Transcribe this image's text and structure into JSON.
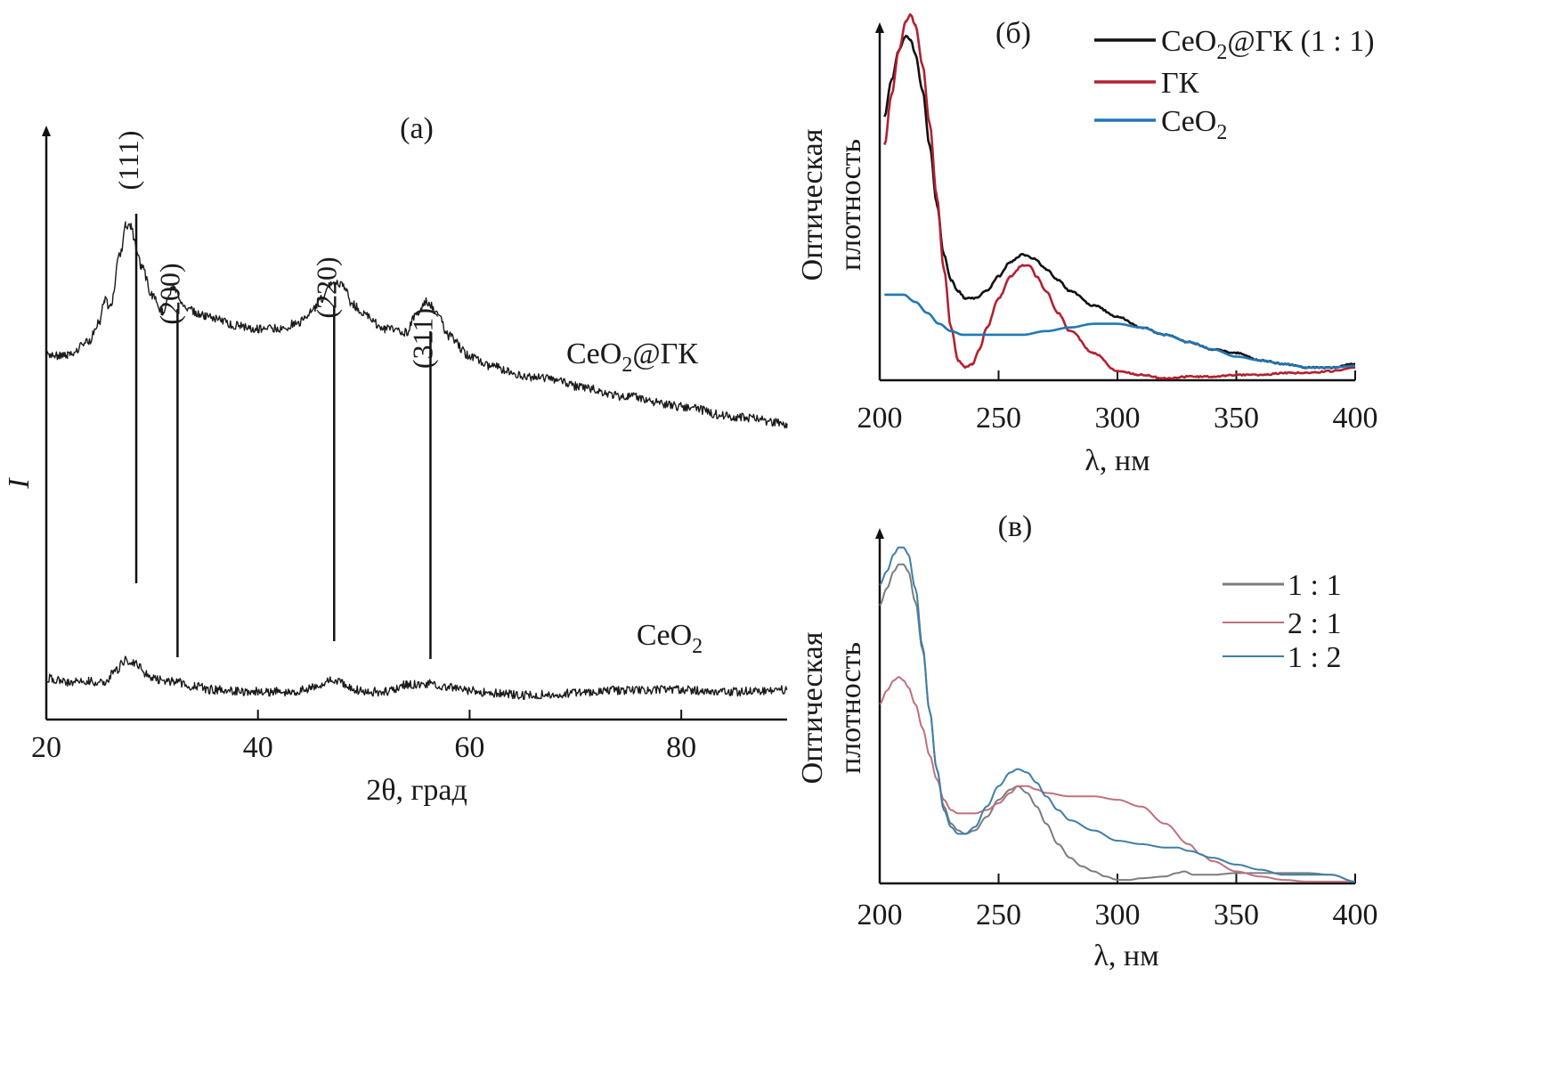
{
  "chart_data": [
    {
      "id": "a",
      "type": "line",
      "panel_label": "(а)",
      "title": "",
      "xlabel": "2θ, град",
      "ylabel": "I",
      "xlim": [
        20,
        90
      ],
      "ylim": [
        0,
        100
      ],
      "x_ticks": [
        20,
        40,
        60,
        80
      ],
      "grid": false,
      "legend": "none",
      "series_labels": [
        {
          "name": "CeO₂@ГК",
          "base": "CeO",
          "sub": "2",
          "suffix": "@ГК"
        },
        {
          "name": "CeO₂",
          "base": "CeO",
          "sub": "2",
          "suffix": ""
        }
      ],
      "series": [
        {
          "name": "CeO₂@ГК",
          "color": "#1a1a1a",
          "x": [
            20,
            22,
            24,
            25,
            25.5,
            26,
            27,
            27.5,
            28,
            28.5,
            29,
            30,
            31,
            32,
            33,
            35,
            38,
            40,
            42,
            44,
            45,
            46,
            47,
            48,
            49,
            50,
            52,
            54,
            55,
            56,
            57,
            58,
            60,
            62,
            65,
            68,
            70,
            75,
            80,
            85,
            90
          ],
          "y": [
            58,
            58,
            62,
            68,
            75,
            72,
            88,
            97,
            96,
            90,
            84,
            76,
            71,
            78,
            72,
            70,
            67,
            66,
            66,
            68,
            71,
            75,
            80,
            79,
            73,
            70,
            66,
            65,
            70,
            74,
            70,
            64,
            58,
            55,
            52,
            51,
            49,
            46,
            43,
            40,
            38
          ]
        },
        {
          "name": "CeO₂",
          "color": "#1a1a1a",
          "x": [
            20,
            22,
            24,
            25.5,
            26.5,
            27.5,
            28.5,
            29.5,
            30.5,
            32,
            34,
            36,
            40,
            43,
            45,
            46.5,
            47.5,
            48.5,
            50,
            52,
            54,
            56,
            58,
            60,
            62,
            65,
            70,
            75,
            80,
            85,
            90
          ],
          "y": [
            14,
            12,
            12,
            12,
            18,
            25,
            23,
            16,
            13,
            12,
            9,
            7,
            6,
            6,
            8,
            12,
            13,
            9,
            6,
            6,
            10,
            11,
            9,
            7,
            5,
            4,
            5,
            7,
            7,
            6,
            7
          ]
        }
      ],
      "annotations": [
        {
          "text": "(111)",
          "x": 28.5
        },
        {
          "text": "(200)",
          "x": 32.4
        },
        {
          "text": "(220)",
          "x": 47.2
        },
        {
          "text": "(311)",
          "x": 56.3
        }
      ],
      "reference_lines_x": [
        28.5,
        32.4,
        47.2,
        56.3
      ]
    },
    {
      "id": "b",
      "type": "line",
      "panel_label": "(б)",
      "title": "",
      "xlabel": "λ, нм",
      "ylabel_line1": "Оптическая",
      "ylabel_line2": "плотность",
      "xlim": [
        200,
        400
      ],
      "ylim": [
        0,
        100
      ],
      "x_ticks": [
        200,
        250,
        300,
        350,
        400
      ],
      "grid": false,
      "legend": "top-right",
      "legend_entries": [
        {
          "base": "CeO",
          "sub": "2",
          "suffix": "@ГК (1 : 1)",
          "color": "#111111"
        },
        {
          "base": "ГК",
          "sub": "",
          "suffix": "",
          "color": "#b3212f"
        },
        {
          "base": "CeO",
          "sub": "2",
          "suffix": "",
          "color": "#1f78b4"
        }
      ],
      "series": [
        {
          "name": "CeO₂@ГК (1 : 1)",
          "color": "#111111",
          "x": [
            202,
            205,
            208,
            211,
            213,
            215,
            218,
            221,
            224,
            227,
            230,
            233,
            236,
            240,
            245,
            250,
            255,
            260,
            265,
            270,
            275,
            280,
            290,
            300,
            310,
            320,
            330,
            340,
            350,
            360,
            370,
            380,
            390,
            400
          ],
          "y": [
            72,
            82,
            90,
            94,
            93,
            89,
            79,
            64,
            48,
            34,
            27,
            24,
            22,
            22,
            24,
            28,
            32,
            34,
            33,
            30,
            27,
            24,
            20,
            17,
            14,
            12,
            10,
            8,
            7,
            5,
            4,
            3,
            3,
            4
          ]
        },
        {
          "name": "ГК",
          "color": "#b3212f",
          "x": [
            202,
            205,
            208,
            211,
            213,
            215,
            218,
            221,
            224,
            227,
            230,
            233,
            236,
            239,
            242,
            245,
            250,
            255,
            260,
            263,
            266,
            270,
            275,
            280,
            290,
            300,
            310,
            320,
            330,
            340,
            350,
            360,
            370,
            380,
            390,
            400
          ],
          "y": [
            64,
            78,
            90,
            98,
            100,
            97,
            86,
            70,
            50,
            30,
            14,
            5,
            3,
            4,
            8,
            14,
            22,
            28,
            31,
            31,
            28,
            24,
            18,
            13,
            7,
            2,
            1,
            0,
            0.5,
            0.5,
            1,
            1,
            1.5,
            1.5,
            2,
            3
          ]
        },
        {
          "name": "CeO₂",
          "color": "#1f78b4",
          "x": [
            202,
            205,
            210,
            215,
            220,
            225,
            230,
            235,
            240,
            250,
            260,
            270,
            280,
            290,
            300,
            310,
            320,
            330,
            340,
            350,
            360,
            370,
            380,
            390,
            400
          ],
          "y": [
            23,
            23,
            23,
            21,
            18,
            15,
            13,
            12,
            12,
            12,
            12,
            13,
            14,
            15,
            15,
            14,
            12,
            10,
            8,
            6,
            5,
            4,
            3,
            3,
            3.5
          ]
        }
      ]
    },
    {
      "id": "v",
      "type": "line",
      "panel_label": "(в)",
      "title": "",
      "xlabel": "λ, нм",
      "ylabel_line1": "Оптическая",
      "ylabel_line2": "плотность",
      "xlim": [
        200,
        400
      ],
      "ylim": [
        0,
        100
      ],
      "x_ticks": [
        200,
        250,
        300,
        350,
        400
      ],
      "grid": false,
      "legend": "top-right",
      "legend_entries": [
        {
          "text": "1 : 1",
          "color": "#7a7d7e"
        },
        {
          "text": "2 : 1",
          "color": "#c0707c"
        },
        {
          "text": "1 : 2",
          "color": "#3f7fa6"
        }
      ],
      "series": [
        {
          "name": "1 : 1",
          "color": "#7a7d7e",
          "x": [
            200,
            203,
            206,
            208,
            210,
            212,
            215,
            218,
            221,
            224,
            227,
            230,
            233,
            236,
            240,
            245,
            250,
            255,
            258,
            262,
            266,
            270,
            275,
            280,
            285,
            290,
            295,
            300,
            305,
            310,
            320,
            325,
            328,
            332,
            340,
            350,
            360,
            370,
            380,
            390,
            400
          ],
          "y": [
            81,
            86,
            91,
            93,
            93,
            91,
            82,
            68,
            50,
            33,
            22,
            17,
            15,
            14,
            15,
            19,
            24,
            27,
            28,
            26,
            22,
            17,
            11,
            7,
            4.5,
            3,
            1.5,
            0.5,
            0.5,
            1,
            1.5,
            2.5,
            3,
            2,
            2,
            2.5,
            2.5,
            2.5,
            2.5,
            2,
            0
          ]
        },
        {
          "name": "2 : 1",
          "color": "#c0707c",
          "x": [
            200,
            203,
            206,
            208,
            210,
            212,
            215,
            218,
            221,
            224,
            227,
            230,
            233,
            236,
            240,
            245,
            250,
            255,
            258,
            262,
            266,
            270,
            280,
            290,
            300,
            310,
            320,
            330,
            335,
            340,
            350,
            360,
            370,
            380,
            390,
            400
          ],
          "y": [
            52,
            56,
            59,
            60,
            59,
            57,
            52,
            45,
            37,
            30,
            24,
            21,
            20,
            20,
            20,
            21,
            23,
            26,
            28,
            28,
            27,
            26,
            25,
            25,
            24,
            22,
            17,
            11,
            8,
            6,
            3,
            1.5,
            0.5,
            0,
            0,
            0
          ]
        },
        {
          "name": "1 : 2",
          "color": "#3f7fa6",
          "x": [
            200,
            203,
            206,
            208,
            210,
            212,
            215,
            218,
            221,
            224,
            227,
            230,
            233,
            236,
            240,
            245,
            250,
            255,
            258,
            262,
            266,
            270,
            275,
            280,
            290,
            300,
            310,
            320,
            325,
            330,
            340,
            350,
            360,
            370,
            380,
            390,
            400
          ],
          "y": [
            87,
            91,
            96,
            98,
            98,
            96,
            86,
            69,
            50,
            33,
            21,
            16,
            14,
            14,
            16,
            22,
            28,
            32,
            33,
            32,
            29,
            25,
            21,
            18,
            15,
            12,
            11,
            10,
            10,
            9,
            7,
            5,
            3.5,
            2,
            2,
            2,
            0
          ]
        }
      ]
    }
  ]
}
